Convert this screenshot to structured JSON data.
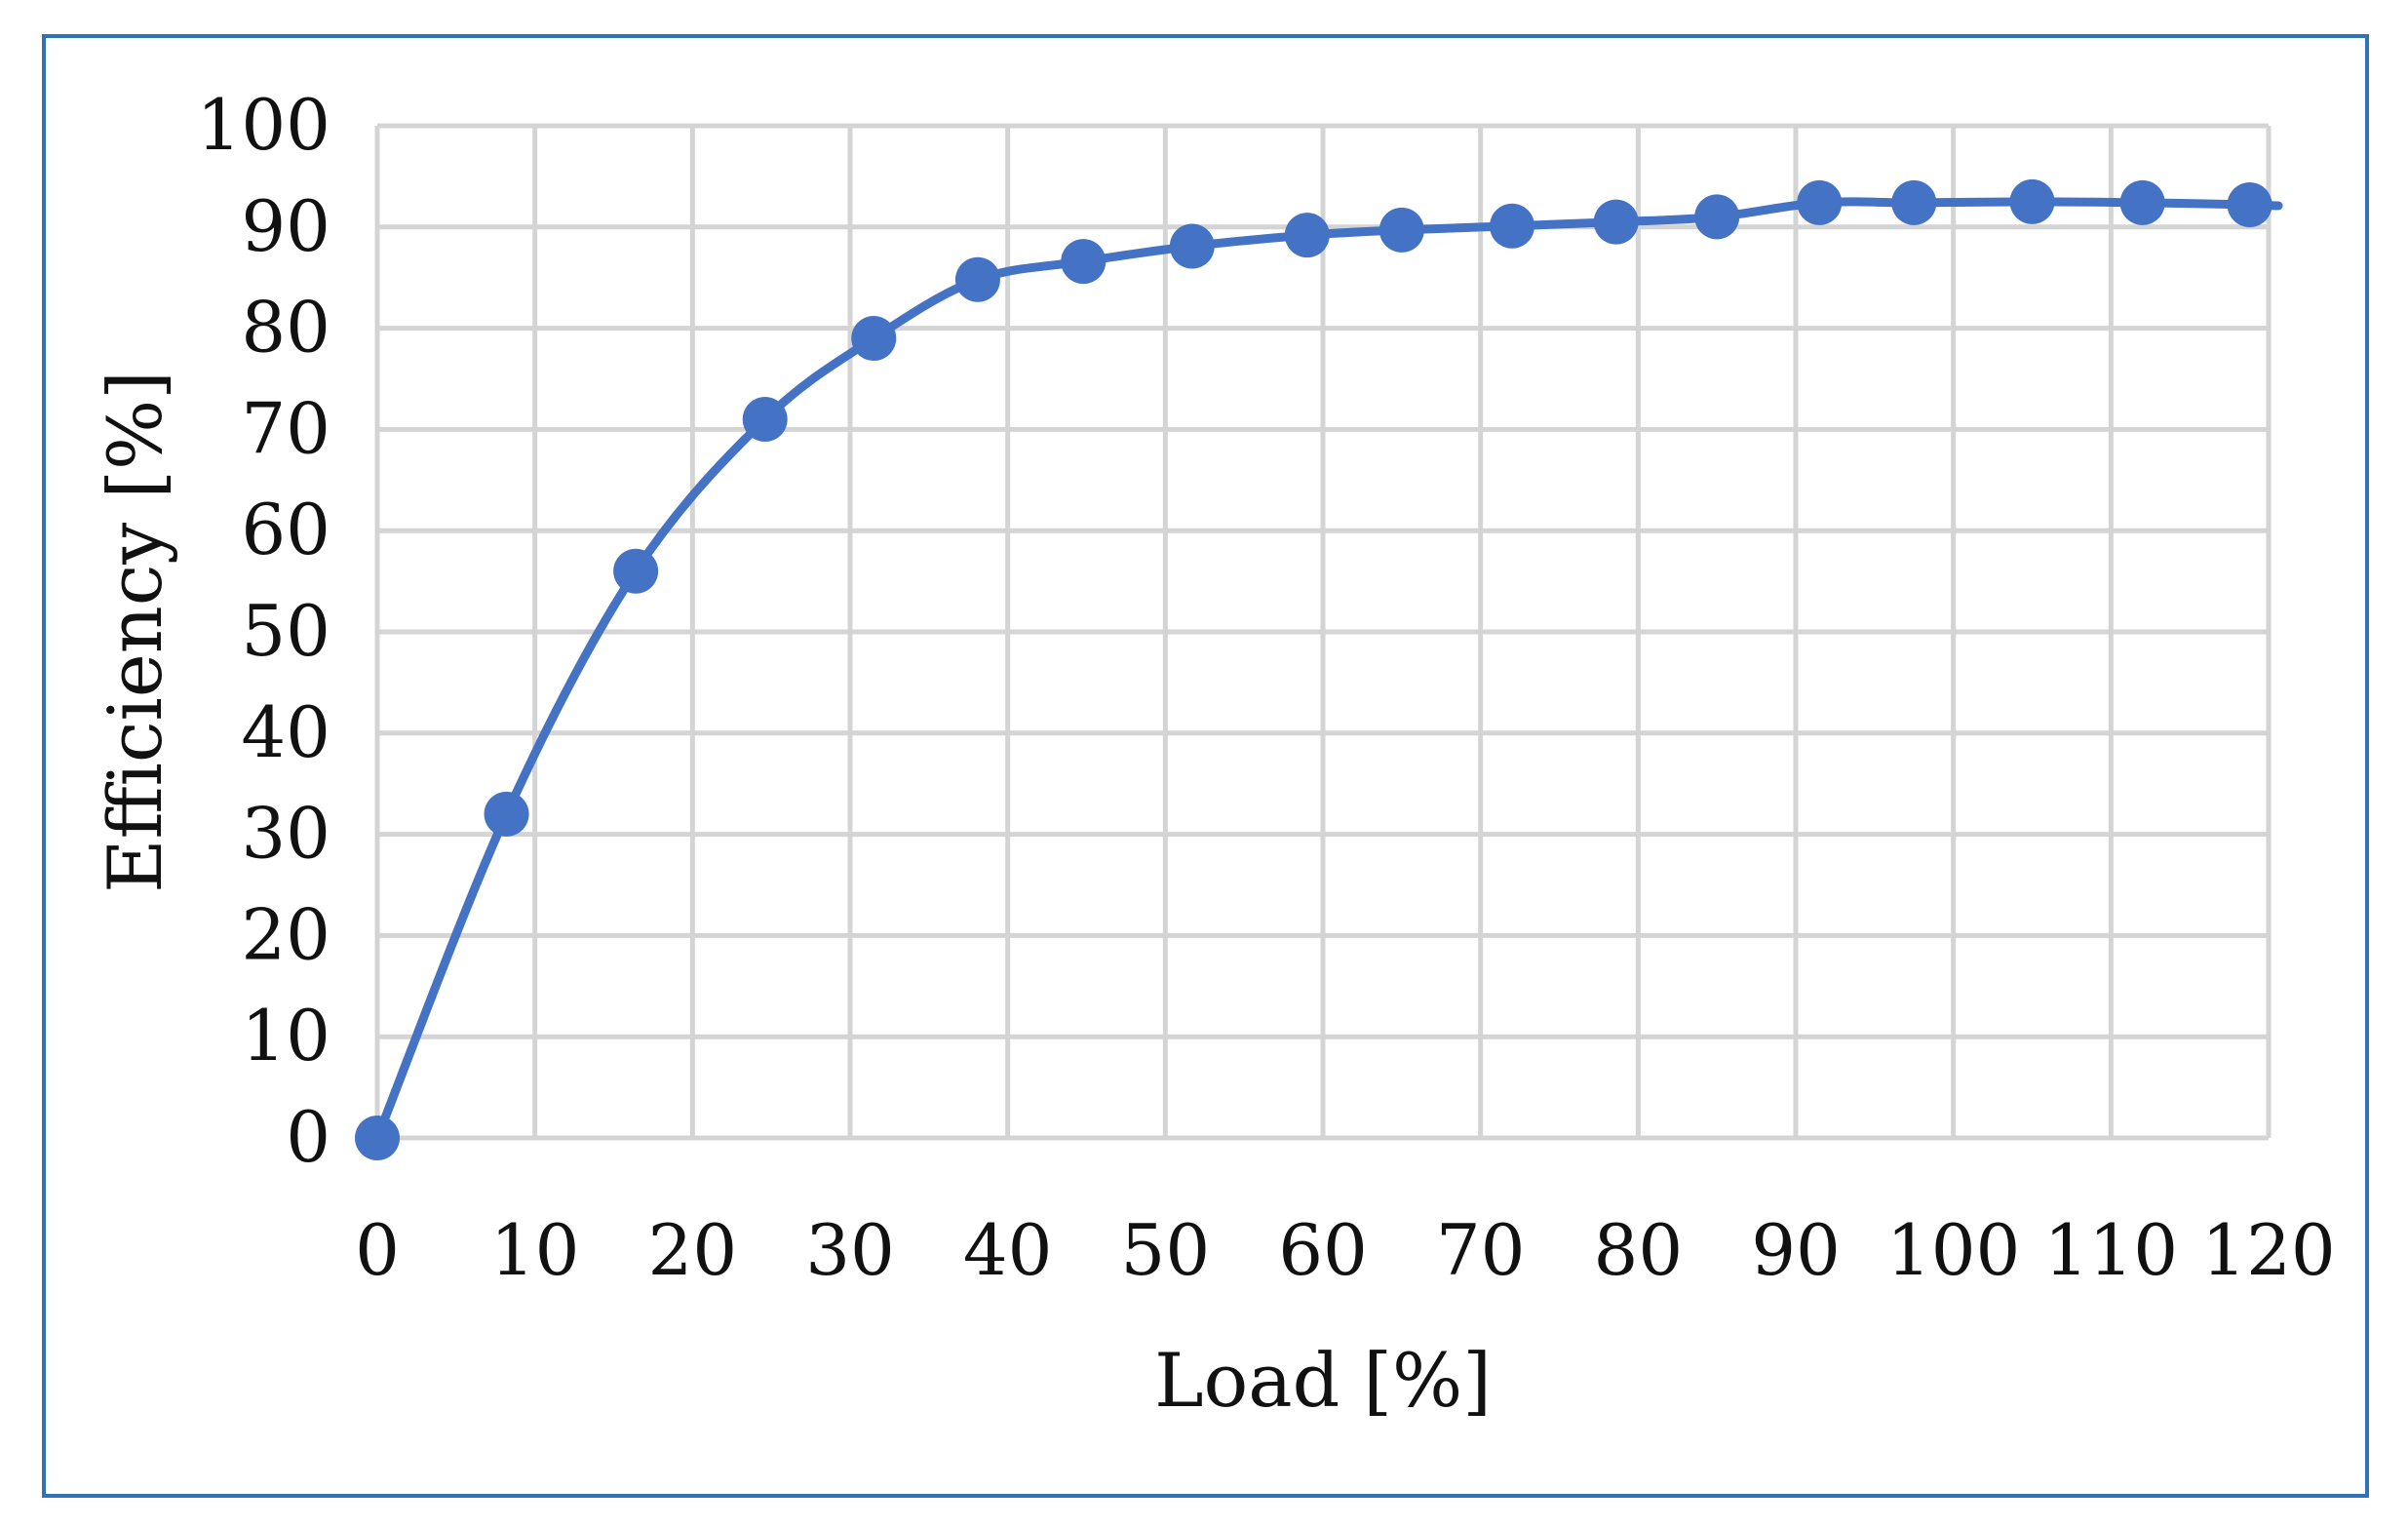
{
  "chart_data": {
    "type": "line",
    "xlabel": "Load [%]",
    "ylabel": "Efficiency [%]",
    "xlim": [
      0,
      120
    ],
    "ylim": [
      0,
      100
    ],
    "x_ticks": [
      "0",
      "10",
      "20",
      "30",
      "40",
      "50",
      "60",
      "70",
      "80",
      "90",
      "100",
      "110",
      "120"
    ],
    "y_ticks": [
      "0",
      "10",
      "20",
      "30",
      "40",
      "50",
      "60",
      "70",
      "80",
      "90",
      "100"
    ],
    "grid": true,
    "smooth": true,
    "series": [
      {
        "color": "#4472c4",
        "marker": "circle",
        "points": [
          {
            "x": 0,
            "y": 0
          },
          {
            "x": 8.2,
            "y": 32
          },
          {
            "x": 16.4,
            "y": 56
          },
          {
            "x": 24.6,
            "y": 71
          },
          {
            "x": 31.5,
            "y": 79
          },
          {
            "x": 38.1,
            "y": 84.8
          },
          {
            "x": 44.8,
            "y": 86.6
          },
          {
            "x": 51.7,
            "y": 88.1
          },
          {
            "x": 59,
            "y": 89.2
          },
          {
            "x": 65,
            "y": 89.7
          },
          {
            "x": 72,
            "y": 90.1
          },
          {
            "x": 78.6,
            "y": 90.5
          },
          {
            "x": 85,
            "y": 91
          },
          {
            "x": 91.5,
            "y": 92.4
          },
          {
            "x": 97.5,
            "y": 92.4
          },
          {
            "x": 105,
            "y": 92.5
          },
          {
            "x": 112,
            "y": 92.4
          },
          {
            "x": 118.8,
            "y": 92.2
          }
        ]
      }
    ]
  }
}
